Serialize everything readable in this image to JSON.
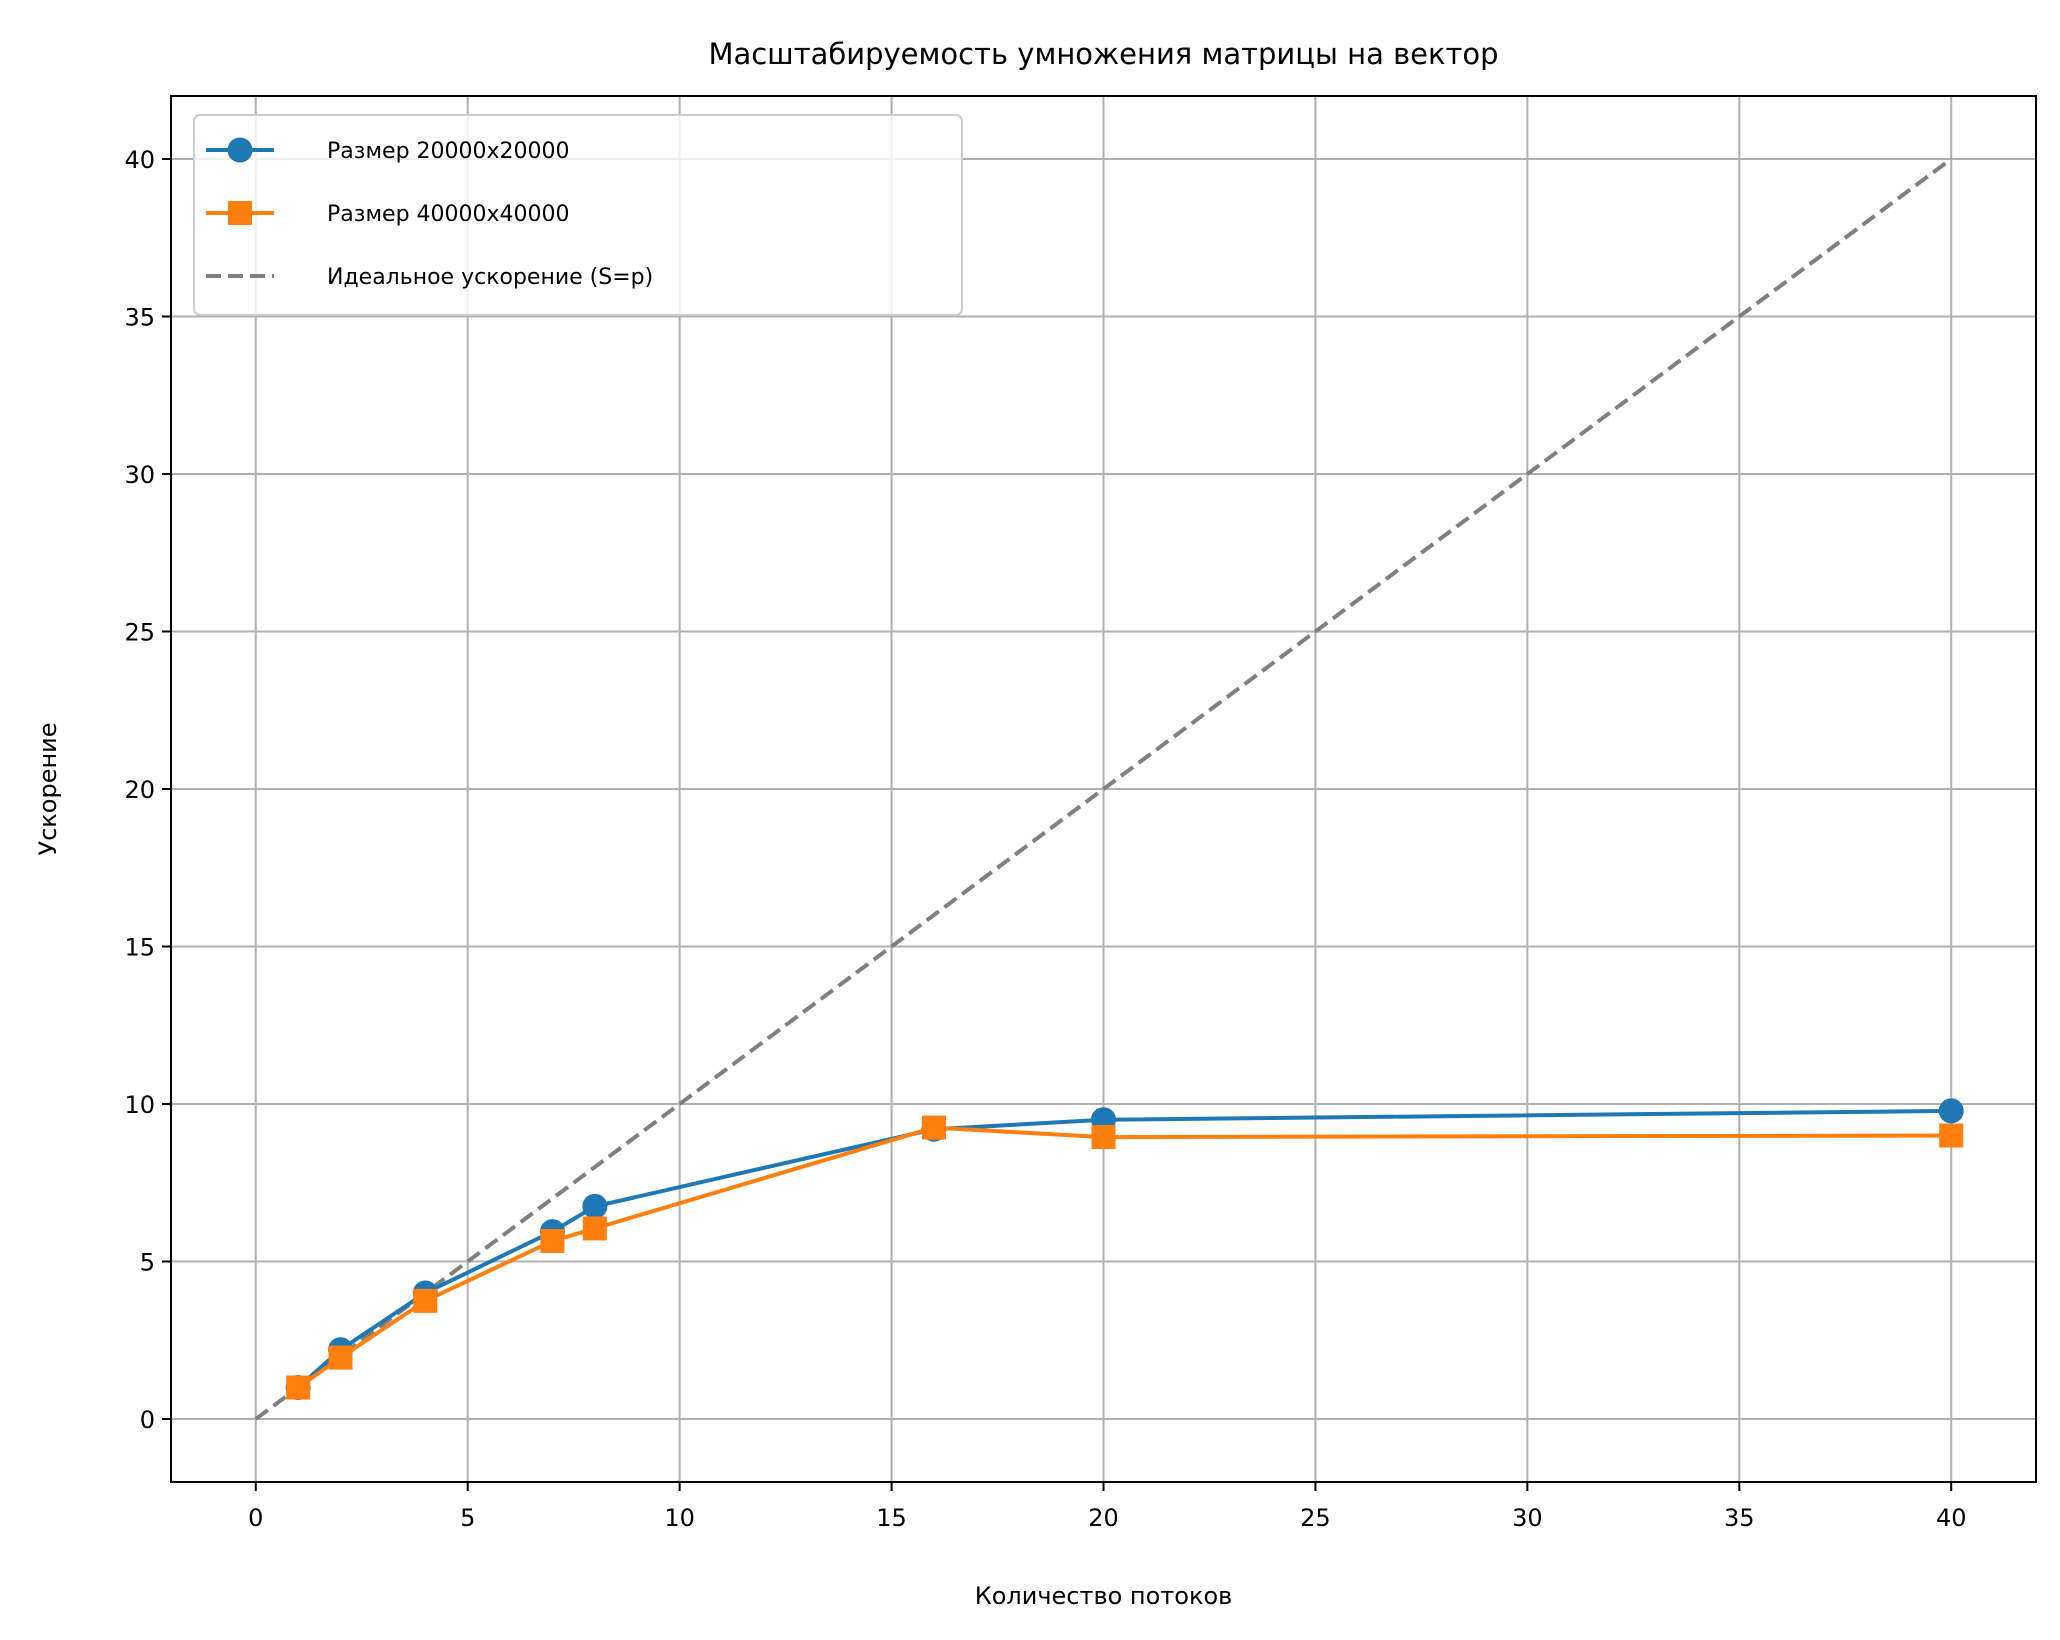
{
  "chart_data": {
    "type": "line",
    "title": "Масштабируемость умножения матрицы на вектор",
    "xlabel": "Количество потоков",
    "ylabel": "Ускорение",
    "xlim": [
      -2,
      42
    ],
    "ylim": [
      -2,
      42
    ],
    "xticks": [
      0,
      5,
      10,
      15,
      20,
      25,
      30,
      35,
      40
    ],
    "yticks": [
      0,
      5,
      10,
      15,
      20,
      25,
      30,
      35,
      40
    ],
    "xtick_labels": [
      "0",
      "5",
      "10",
      "15",
      "20",
      "25",
      "30",
      "35",
      "40"
    ],
    "ytick_labels": [
      "0",
      "5",
      "10",
      "15",
      "20",
      "25",
      "30",
      "35",
      "40"
    ],
    "grid": true,
    "legend_position": "top-left",
    "series": [
      {
        "name": "Размер 20000x20000",
        "color": "#1f77b4",
        "marker": "circle",
        "line": "solid",
        "x": [
          1,
          2,
          4,
          7,
          8,
          16,
          20,
          40
        ],
        "y": [
          1.0,
          2.2,
          4.0,
          5.95,
          6.75,
          9.2,
          9.5,
          9.78
        ]
      },
      {
        "name": "Размер 40000x40000",
        "color": "#ff7f0e",
        "marker": "square",
        "line": "solid",
        "x": [
          1,
          2,
          4,
          7,
          8,
          16,
          20,
          40
        ],
        "y": [
          1.0,
          1.95,
          3.75,
          5.65,
          6.05,
          9.25,
          8.95,
          9.0
        ]
      },
      {
        "name": "Идеальное ускорение (S=p)",
        "color": "#7f7f7f",
        "marker": "none",
        "line": "dashed",
        "x": [
          0,
          40
        ],
        "y": [
          0,
          40
        ]
      }
    ]
  }
}
